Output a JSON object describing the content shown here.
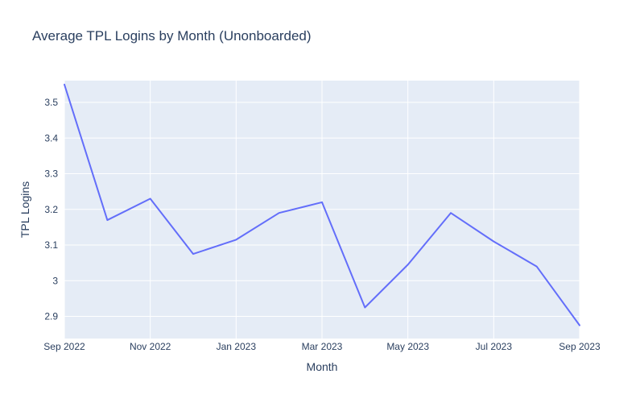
{
  "chart_data": {
    "type": "line",
    "title": "Average TPL Logins by Month (Unonboarded)",
    "xlabel": "Month",
    "ylabel": "TPL Logins",
    "x": [
      "2022-09",
      "2022-10",
      "2022-11",
      "2022-12",
      "2023-01",
      "2023-02",
      "2023-03",
      "2023-04",
      "2023-05",
      "2023-06",
      "2023-07",
      "2023-08",
      "2023-09"
    ],
    "series": [
      {
        "values": [
          3.55,
          3.17,
          3.23,
          3.075,
          3.115,
          3.19,
          3.22,
          2.925,
          3.045,
          3.19,
          3.11,
          3.04,
          2.875
        ]
      }
    ],
    "x_ticks": [
      "Sep 2022",
      "Nov 2022",
      "Jan 2023",
      "Mar 2023",
      "May 2023",
      "Jul 2023",
      "Sep 2023"
    ],
    "y_ticks": [
      "2.9",
      "3",
      "3.1",
      "3.2",
      "3.3",
      "3.4",
      "3.5"
    ],
    "ylim": [
      2.838,
      3.561
    ],
    "grid": true,
    "colors": {
      "line": "#636efa",
      "plot_bg": "#e5ecf6",
      "grid": "#ffffff",
      "text": "#2a3f5f"
    }
  }
}
